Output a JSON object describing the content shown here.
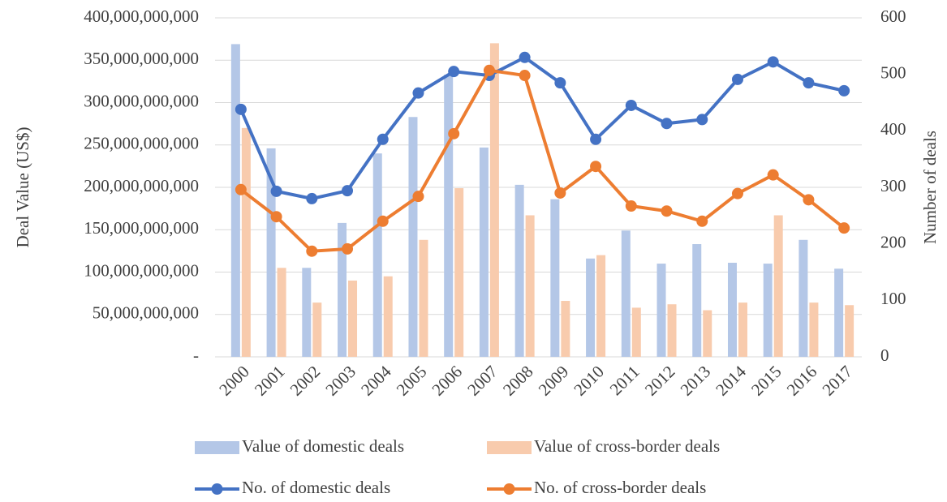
{
  "chart_data": {
    "type": "bar-line",
    "y_label": "Deal Value (US$)",
    "y2_label": "Number of deals",
    "categories": [
      "2000",
      "2001",
      "2002",
      "2003",
      "2004",
      "2005",
      "2006",
      "2007",
      "2008",
      "2009",
      "2010",
      "2011",
      "2012",
      "2013",
      "2014",
      "2015",
      "2016",
      "2017"
    ],
    "series": [
      {
        "name": "Value of domestic deals",
        "type": "bar",
        "color": "#b4c7e7",
        "values": [
          369000000000,
          246000000000,
          105000000000,
          158000000000,
          240000000000,
          283000000000,
          333000000000,
          247000000000,
          203000000000,
          186000000000,
          116000000000,
          149000000000,
          110000000000,
          133000000000,
          111000000000,
          110000000000,
          138000000000,
          104000000000
        ]
      },
      {
        "name": "Value of cross-border deals",
        "type": "bar",
        "color": "#f8cbad",
        "values": [
          270000000000,
          105000000000,
          64000000000,
          90000000000,
          95000000000,
          138000000000,
          199000000000,
          370000000000,
          167000000000,
          66000000000,
          120000000000,
          58000000000,
          62000000000,
          55000000000,
          64000000000,
          167000000000,
          64000000000,
          61000000000
        ]
      },
      {
        "name": "No. of domestic deals",
        "type": "line",
        "axis": "y2",
        "color": "#4472c4",
        "values": [
          438,
          293,
          280,
          294,
          385,
          467,
          505,
          498,
          530,
          485,
          385,
          445,
          413,
          420,
          491,
          522,
          485,
          471
        ]
      },
      {
        "name": "No. of cross-border deals",
        "type": "line",
        "axis": "y2",
        "color": "#ed7d31",
        "values": [
          296,
          248,
          187,
          191,
          240,
          284,
          395,
          507,
          498,
          290,
          337,
          267,
          258,
          240,
          289,
          322,
          278,
          228
        ]
      }
    ],
    "ylim": [
      0,
      400000000000
    ],
    "yticks": [
      {
        "value": 0,
        "label": "-"
      },
      {
        "value": 50000000000,
        "label": "50,000,000,000"
      },
      {
        "value": 100000000000,
        "label": "100,000,000,000"
      },
      {
        "value": 150000000000,
        "label": "150,000,000,000"
      },
      {
        "value": 200000000000,
        "label": "200,000,000,000"
      },
      {
        "value": 250000000000,
        "label": "250,000,000,000"
      },
      {
        "value": 300000000000,
        "label": "300,000,000,000"
      },
      {
        "value": 350000000000,
        "label": "350,000,000,000"
      },
      {
        "value": 400000000000,
        "label": "400,000,000,000"
      }
    ],
    "y2lim": [
      0,
      600
    ],
    "y2ticks": [
      0,
      100,
      200,
      300,
      400,
      500,
      600
    ],
    "grid": true
  }
}
